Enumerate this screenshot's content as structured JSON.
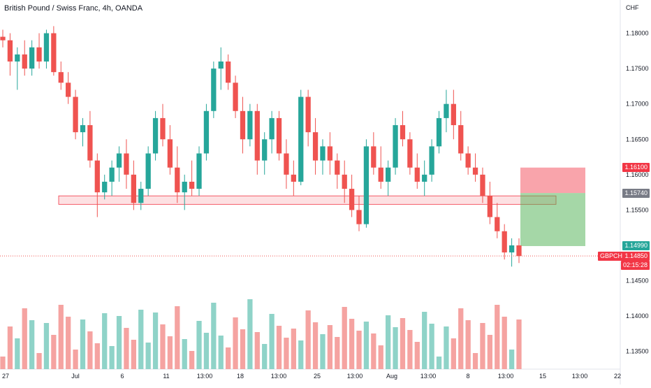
{
  "header": {
    "title": "British Pound / Swiss Franc, 4h, OANDA"
  },
  "axis": {
    "currency": "CHF"
  },
  "price_labels": {
    "stop": {
      "text": "1.16100",
      "color": "#f23645"
    },
    "entry": {
      "text": "1.15740",
      "color": "#787b86"
    },
    "target": {
      "text": "1.14990",
      "color": "#26a69a"
    },
    "symbol": {
      "text": "GBPCHF",
      "color": "#f23645"
    },
    "last": {
      "text": "1.14850",
      "color": "#f23645"
    },
    "countdown": {
      "text": "02:15:28",
      "color": "#f23645"
    }
  },
  "colors": {
    "up": "#26a69a",
    "down": "#ef5350",
    "vol_up": "#8fd3c8",
    "vol_down": "#f5a3a1"
  },
  "chart_data": {
    "type": "candlestick",
    "title": "British Pound / Swiss Franc, 4h, OANDA",
    "ylabel": "CHF",
    "ylim": [
      1.1325,
      1.1845
    ],
    "y_ticks": [
      "1.18000",
      "1.17500",
      "1.17000",
      "1.16500",
      "1.16000",
      "1.15500",
      "1.15000",
      "1.14500",
      "1.14000",
      "1.13500"
    ],
    "x_ticks": [
      "27",
      "Jul",
      "6",
      "11",
      "13:00",
      "18",
      "13:00",
      "25",
      "13:00",
      "Aug",
      "13:00",
      "8",
      "13:00",
      "15",
      "13:00",
      "22"
    ],
    "support_zone": {
      "from": 1.1558,
      "to": 1.157
    },
    "position": {
      "type": "short",
      "entry": 1.1574,
      "stop": 1.161,
      "target": 1.1499
    },
    "last_price": 1.1485,
    "ohlc_approx": [
      [
        1.1795,
        1.1805,
        1.178,
        1.179
      ],
      [
        1.179,
        1.18,
        1.174,
        1.176
      ],
      [
        1.176,
        1.178,
        1.172,
        1.177
      ],
      [
        1.177,
        1.179,
        1.174,
        1.175
      ],
      [
        1.175,
        1.179,
        1.174,
        1.178
      ],
      [
        1.178,
        1.18,
        1.175,
        1.176
      ],
      [
        1.176,
        1.1805,
        1.175,
        1.18
      ],
      [
        1.18,
        1.181,
        1.174,
        1.1745
      ],
      [
        1.1745,
        1.176,
        1.172,
        1.173
      ],
      [
        1.173,
        1.1745,
        1.17,
        1.171
      ],
      [
        1.171,
        1.172,
        1.165,
        1.166
      ],
      [
        1.166,
        1.168,
        1.164,
        1.167
      ],
      [
        1.167,
        1.169,
        1.161,
        1.162
      ],
      [
        1.162,
        1.163,
        1.154,
        1.1575
      ],
      [
        1.1575,
        1.16,
        1.1565,
        1.159
      ],
      [
        1.159,
        1.162,
        1.157,
        1.161
      ],
      [
        1.161,
        1.164,
        1.159,
        1.163
      ],
      [
        1.163,
        1.165,
        1.158,
        1.16
      ],
      [
        1.16,
        1.162,
        1.155,
        1.156
      ],
      [
        1.156,
        1.159,
        1.155,
        1.158
      ],
      [
        1.158,
        1.164,
        1.157,
        1.163
      ],
      [
        1.163,
        1.169,
        1.162,
        1.168
      ],
      [
        1.168,
        1.17,
        1.164,
        1.165
      ],
      [
        1.165,
        1.167,
        1.16,
        1.161
      ],
      [
        1.161,
        1.164,
        1.156,
        1.1575
      ],
      [
        1.1575,
        1.16,
        1.155,
        1.159
      ],
      [
        1.159,
        1.162,
        1.157,
        1.158
      ],
      [
        1.158,
        1.164,
        1.157,
        1.163
      ],
      [
        1.163,
        1.17,
        1.162,
        1.169
      ],
      [
        1.169,
        1.176,
        1.168,
        1.175
      ],
      [
        1.175,
        1.178,
        1.172,
        1.176
      ],
      [
        1.176,
        1.177,
        1.172,
        1.173
      ],
      [
        1.173,
        1.174,
        1.168,
        1.169
      ],
      [
        1.169,
        1.171,
        1.163,
        1.165
      ],
      [
        1.165,
        1.17,
        1.164,
        1.169
      ],
      [
        1.169,
        1.17,
        1.16,
        1.162
      ],
      [
        1.162,
        1.166,
        1.16,
        1.165
      ],
      [
        1.165,
        1.169,
        1.163,
        1.168
      ],
      [
        1.168,
        1.169,
        1.162,
        1.163
      ],
      [
        1.163,
        1.165,
        1.158,
        1.16
      ],
      [
        1.16,
        1.162,
        1.157,
        1.159
      ],
      [
        1.159,
        1.172,
        1.1585,
        1.171
      ],
      [
        1.171,
        1.172,
        1.164,
        1.166
      ],
      [
        1.166,
        1.168,
        1.16,
        1.162
      ],
      [
        1.162,
        1.165,
        1.16,
        1.164
      ],
      [
        1.164,
        1.166,
        1.16,
        1.162
      ],
      [
        1.162,
        1.163,
        1.158,
        1.16
      ],
      [
        1.16,
        1.162,
        1.156,
        1.158
      ],
      [
        1.158,
        1.16,
        1.154,
        1.155
      ],
      [
        1.155,
        1.157,
        1.152,
        1.153
      ],
      [
        1.153,
        1.165,
        1.1525,
        1.164
      ],
      [
        1.164,
        1.166,
        1.16,
        1.161
      ],
      [
        1.161,
        1.164,
        1.158,
        1.159
      ],
      [
        1.159,
        1.162,
        1.157,
        1.161
      ],
      [
        1.161,
        1.168,
        1.16,
        1.167
      ],
      [
        1.167,
        1.169,
        1.164,
        1.165
      ],
      [
        1.165,
        1.166,
        1.16,
        1.161
      ],
      [
        1.161,
        1.163,
        1.158,
        1.159
      ],
      [
        1.159,
        1.162,
        1.157,
        1.16
      ],
      [
        1.16,
        1.165,
        1.159,
        1.164
      ],
      [
        1.164,
        1.169,
        1.163,
        1.168
      ],
      [
        1.168,
        1.172,
        1.166,
        1.17
      ],
      [
        1.17,
        1.172,
        1.165,
        1.167
      ],
      [
        1.167,
        1.169,
        1.162,
        1.163
      ],
      [
        1.163,
        1.164,
        1.16,
        1.161
      ],
      [
        1.161,
        1.163,
        1.159,
        1.16
      ],
      [
        1.16,
        1.161,
        1.156,
        1.157
      ],
      [
        1.157,
        1.159,
        1.153,
        1.154
      ],
      [
        1.154,
        1.156,
        1.151,
        1.152
      ],
      [
        1.152,
        1.153,
        1.148,
        1.149
      ],
      [
        1.149,
        1.151,
        1.147,
        1.15
      ],
      [
        1.15,
        1.151,
        1.1475,
        1.1485
      ]
    ]
  }
}
